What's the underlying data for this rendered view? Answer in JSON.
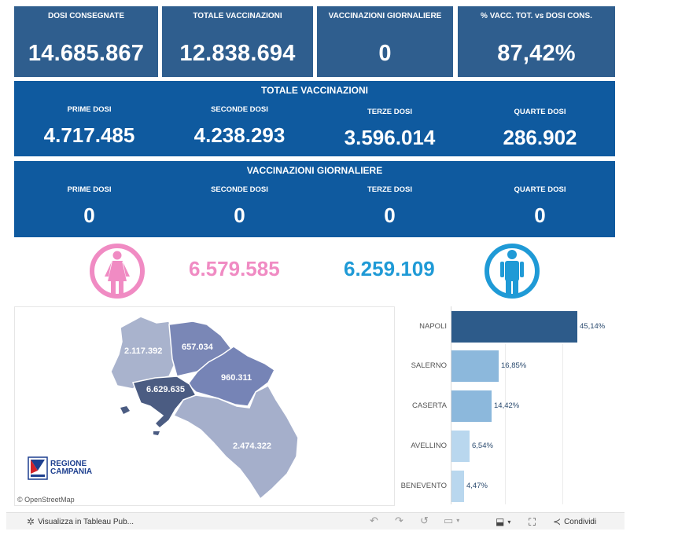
{
  "kpis": [
    {
      "label": "DOSI  CONSEGNATE",
      "value": "14.685.867"
    },
    {
      "label": "TOTALE VACCINAZIONI",
      "value": "12.838.694"
    },
    {
      "label": "VACCINAZIONI GIORNALIERE",
      "value": "0"
    },
    {
      "label": "% VACC. TOT. vs DOSI CONS.",
      "value": "87,42%"
    }
  ],
  "totale": {
    "title": "TOTALE VACCINAZIONI",
    "cols": [
      {
        "label": "PRIME DOSI",
        "value": "4.717.485"
      },
      {
        "label": "SECONDE DOSI",
        "value": "4.238.293"
      },
      {
        "label": "TERZE DOSI",
        "value": "3.596.014"
      },
      {
        "label": "QUARTE DOSI",
        "value": "286.902"
      }
    ]
  },
  "giornaliere": {
    "title": "VACCINAZIONI GIORNALIERE",
    "cols": [
      {
        "label": "PRIME DOSI",
        "value": "0"
      },
      {
        "label": "SECONDE DOSI",
        "value": "0"
      },
      {
        "label": "TERZE DOSI",
        "value": "0"
      },
      {
        "label": "QUARTE DOSI",
        "value": "0"
      }
    ]
  },
  "gender": {
    "female_value": "6.579.585",
    "male_value": "6.259.109",
    "female_color": "#f08bc3",
    "male_color": "#1f9ad6",
    "female_icon": "female-icon",
    "male_icon": "male-icon"
  },
  "map": {
    "labels": {
      "caserta": "2.117.392",
      "benevento": "657.034",
      "avellino": "960.311",
      "napoli": "6.629.635",
      "salerno": "2.474.322"
    },
    "logo_line1": "REGIONE",
    "logo_line2": "CAMPANIA",
    "attribution": "© OpenStreetMap"
  },
  "chart_data": {
    "type": "bar",
    "orientation": "horizontal",
    "categories": [
      "NAPOLI",
      "SALERNO",
      "CASERTA",
      "AVELLINO",
      "BENEVENTO"
    ],
    "values": [
      45.14,
      16.85,
      14.42,
      6.54,
      4.47
    ],
    "value_labels": [
      "45,14%",
      "16,85%",
      "14,42%",
      "6,54%",
      "4,47%"
    ],
    "colors": [
      "#2d5b8a",
      "#8cb8dc",
      "#8cb8dc",
      "#b9d7ee",
      "#b9d7ee"
    ]
  },
  "toolbar": {
    "view_label": "Visualizza in Tableau Pub...",
    "share_label": "Condividi"
  }
}
